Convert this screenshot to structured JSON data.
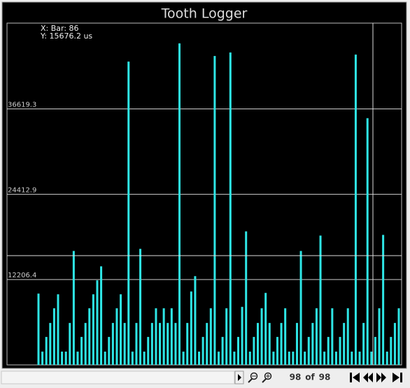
{
  "chart_data": {
    "type": "bar",
    "title": "Tooth Logger",
    "annotations": [
      "X: Bar: 86",
      "Y: 15676.2 us"
    ],
    "color": "#2ee6e6",
    "values": [
      10200,
      1900,
      4000,
      6000,
      8100,
      10100,
      1900,
      1900,
      6000,
      16300,
      1900,
      4000,
      6000,
      8100,
      10100,
      12100,
      14100,
      1900,
      4000,
      6000,
      8100,
      10100,
      6000,
      43400,
      1900,
      6000,
      16600,
      1900,
      4000,
      6000,
      8100,
      6000,
      8100,
      6000,
      8100,
      6000,
      46000,
      1900,
      6000,
      10500,
      12700,
      1900,
      4000,
      6000,
      8100,
      44200,
      1900,
      4000,
      8100,
      44700,
      1900,
      4000,
      8300,
      19100,
      1900,
      4000,
      6000,
      8100,
      10300,
      6000,
      1900,
      4000,
      6000,
      8100,
      1900,
      1900,
      6000,
      16300,
      1900,
      4000,
      6000,
      8100,
      18500,
      1900,
      4000,
      8100,
      1900,
      4000,
      6000,
      8100,
      1900,
      44400,
      1900,
      6000,
      35300,
      1900,
      4000,
      8100,
      18600,
      1900,
      4000,
      6000,
      8100
    ],
    "ylim": [
      0,
      48900
    ],
    "yticks": [
      12206.4,
      24412.9,
      36619.3
    ],
    "grid": true
  },
  "toolbar": {
    "current": "98",
    "of": "of",
    "total": "98"
  }
}
